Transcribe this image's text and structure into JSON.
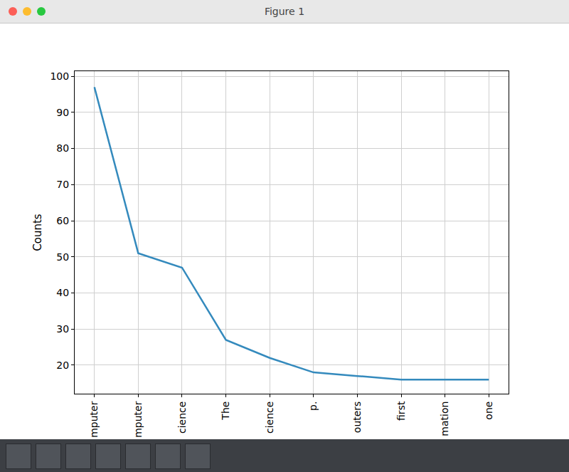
{
  "window": {
    "title": "Figure 1"
  },
  "chart_data": {
    "type": "line",
    "y_label": "Counts",
    "categories": [
      "mputer",
      "mputer",
      "cience",
      "The",
      "cience",
      "p.",
      "outers",
      "first",
      "mation",
      "one"
    ],
    "values": [
      97,
      51,
      47,
      27,
      22,
      18,
      17,
      16,
      16,
      16
    ],
    "color": "#348abd",
    "ylim": [
      12.1,
      101.4
    ],
    "yticks": [
      20,
      30,
      40,
      50,
      60,
      70,
      80,
      90,
      100
    ],
    "grid": true
  }
}
